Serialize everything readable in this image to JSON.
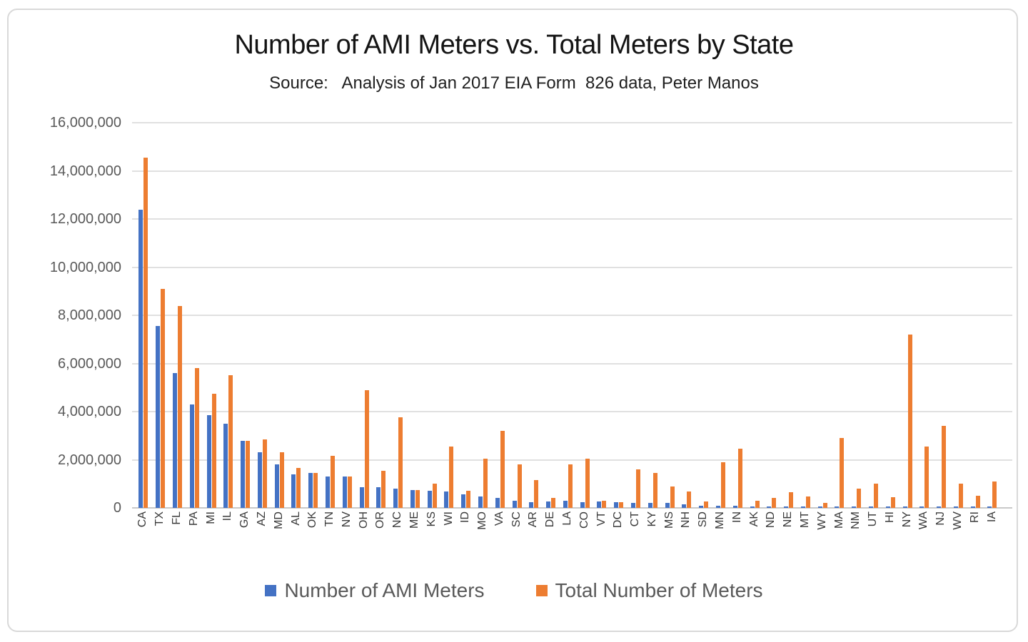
{
  "chart": {
    "title": "Number of AMI Meters vs. Total Meters by State",
    "subtitle": "Source:   Analysis of Jan 2017 EIA Form  826 data, Peter Manos"
  },
  "colors": {
    "ami_blue": "#4472C4",
    "total_orange": "#ED7D31",
    "gridline": "#E0E0E0",
    "axis_line": "#C9C9C9",
    "y_tick_text": "#595959",
    "x_tick_text": "#3A3A3A"
  },
  "chart_data": {
    "type": "bar",
    "title": "Number of AMI Meters vs. Total Meters by State",
    "subtitle": "Source:   Analysis of Jan 2017 EIA Form  826 data, Peter Manos",
    "categories": [
      "CA",
      "TX",
      "FL",
      "PA",
      "MI",
      "IL",
      "GA",
      "AZ",
      "MD",
      "AL",
      "OK",
      "TN",
      "NV",
      "OH",
      "OR",
      "NC",
      "ME",
      "KS",
      "WI",
      "ID",
      "MO",
      "VA",
      "SC",
      "AR",
      "DE",
      "LA",
      "CO",
      "VT",
      "DC",
      "CT",
      "KY",
      "MS",
      "NH",
      "SD",
      "MN",
      "IN",
      "AK",
      "ND",
      "NE",
      "MT",
      "WY",
      "MA",
      "NM",
      "UT",
      "HI",
      "NY",
      "WA",
      "NJ",
      "WV",
      "RI",
      "IA"
    ],
    "series": [
      {
        "name": "Number of AMI Meters",
        "color": "#4472C4",
        "values": [
          12400000,
          7550000,
          5600000,
          4300000,
          3850000,
          3500000,
          2800000,
          2300000,
          1800000,
          1400000,
          1450000,
          1300000,
          1300000,
          850000,
          850000,
          800000,
          750000,
          700000,
          680000,
          550000,
          480000,
          420000,
          300000,
          250000,
          270000,
          300000,
          250000,
          270000,
          250000,
          200000,
          200000,
          200000,
          150000,
          100000,
          100000,
          100000,
          70000,
          30000,
          50000,
          30000,
          20000,
          30000,
          30000,
          30000,
          20000,
          30000,
          30000,
          30000,
          20000,
          20000,
          10000
        ]
      },
      {
        "name": "Total Number of Meters",
        "color": "#ED7D31",
        "values": [
          14550000,
          9100000,
          8400000,
          5800000,
          4750000,
          5500000,
          2800000,
          2850000,
          2300000,
          1650000,
          1450000,
          2150000,
          1300000,
          4900000,
          1550000,
          3750000,
          750000,
          1000000,
          2550000,
          700000,
          2050000,
          3200000,
          1800000,
          1150000,
          420000,
          1800000,
          2050000,
          300000,
          250000,
          1600000,
          1450000,
          900000,
          680000,
          280000,
          1900000,
          2450000,
          300000,
          420000,
          650000,
          480000,
          220000,
          2900000,
          800000,
          1000000,
          450000,
          7200000,
          2550000,
          3400000,
          1000000,
          500000,
          1100000
        ]
      }
    ],
    "xlabel": "",
    "ylabel": "",
    "ylim": [
      0,
      16000000
    ],
    "ytick_step": 2000000,
    "ytick_labels_top_to_bottom": [
      "16,000,000",
      "14,000,000",
      "12,000,000",
      "10,000,000",
      "8,000,000",
      "6,000,000",
      "4,000,000",
      "2,000,000",
      "0"
    ],
    "grid": true,
    "x_tick_rotation_degrees": -90,
    "legend_position": "bottom"
  }
}
